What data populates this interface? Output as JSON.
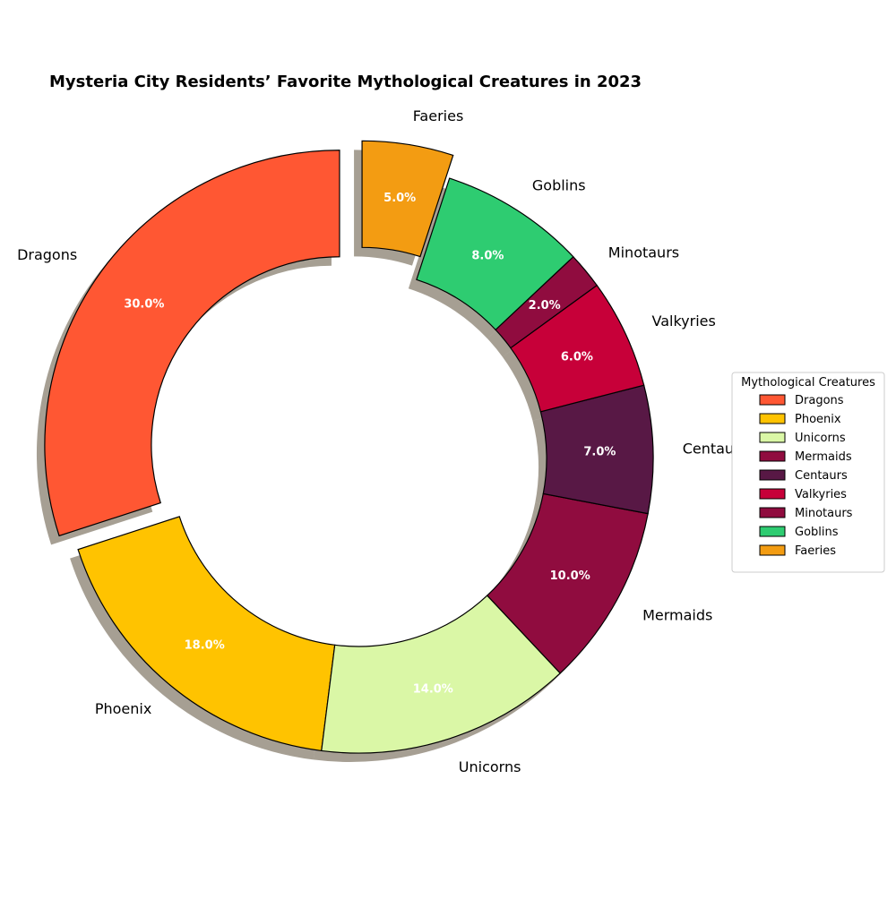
{
  "chart_data": {
    "type": "pie",
    "title": "Mysteria City Residents’ Favorite Mythological Creatures in 2023",
    "categories": [
      "Dragons",
      "Phoenix",
      "Unicorns",
      "Mermaids",
      "Centaurs",
      "Valkyries",
      "Minotaurs",
      "Goblins",
      "Faeries"
    ],
    "values": [
      30.0,
      18.0,
      14.0,
      10.0,
      7.0,
      6.0,
      2.0,
      8.0,
      5.0
    ],
    "value_labels": [
      "30.0%",
      "18.0%",
      "14.0%",
      "10.0%",
      "7.0%",
      "6.0%",
      "2.0%",
      "8.0%",
      "5.0%"
    ],
    "colors": [
      "#FF5733",
      "#FFC300",
      "#DAF7A6",
      "#900C3F",
      "#581845",
      "#C70039",
      "#900C3F",
      "#2ECC71",
      "#F39C12"
    ],
    "exploded": [
      "Dragons",
      "Faeries"
    ],
    "style": "donut",
    "shadow": true,
    "start": "top, counter-clockwise",
    "legend": {
      "title": "Mythological Creatures",
      "placement": "right",
      "entries": [
        "Dragons",
        "Phoenix",
        "Unicorns",
        "Mermaids",
        "Centaurs",
        "Valkyries",
        "Minotaurs",
        "Goblins",
        "Faeries"
      ]
    }
  }
}
